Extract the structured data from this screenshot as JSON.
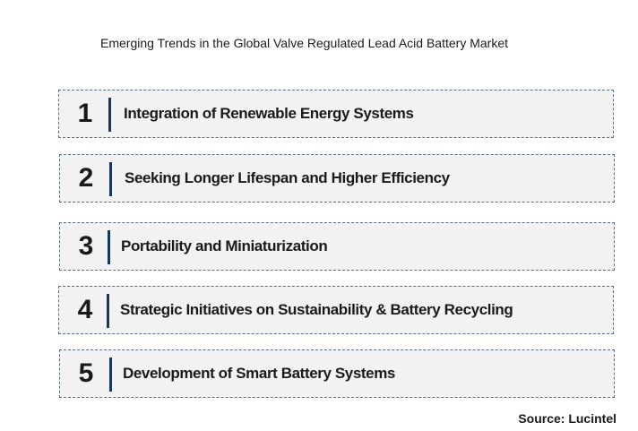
{
  "title": "Emerging Trends in the Global Valve Regulated Lead Acid Battery Market",
  "trends": [
    {
      "number": "1",
      "label": "Integration of Renewable Energy Systems"
    },
    {
      "number": "2",
      "label": "Seeking Longer Lifespan and Higher Efficiency"
    },
    {
      "number": "3",
      "label": "Portability and Miniaturization"
    },
    {
      "number": "4",
      "label": "Strategic Initiatives on Sustainability & Battery Recycling"
    },
    {
      "number": "5",
      "label": "Development of Smart Battery Systems"
    }
  ],
  "source": "Source: Lucintel",
  "colors": {
    "box_fill": "#f2f2f2",
    "box_border": "#5b6d84",
    "accent_bar": "#17375e"
  }
}
